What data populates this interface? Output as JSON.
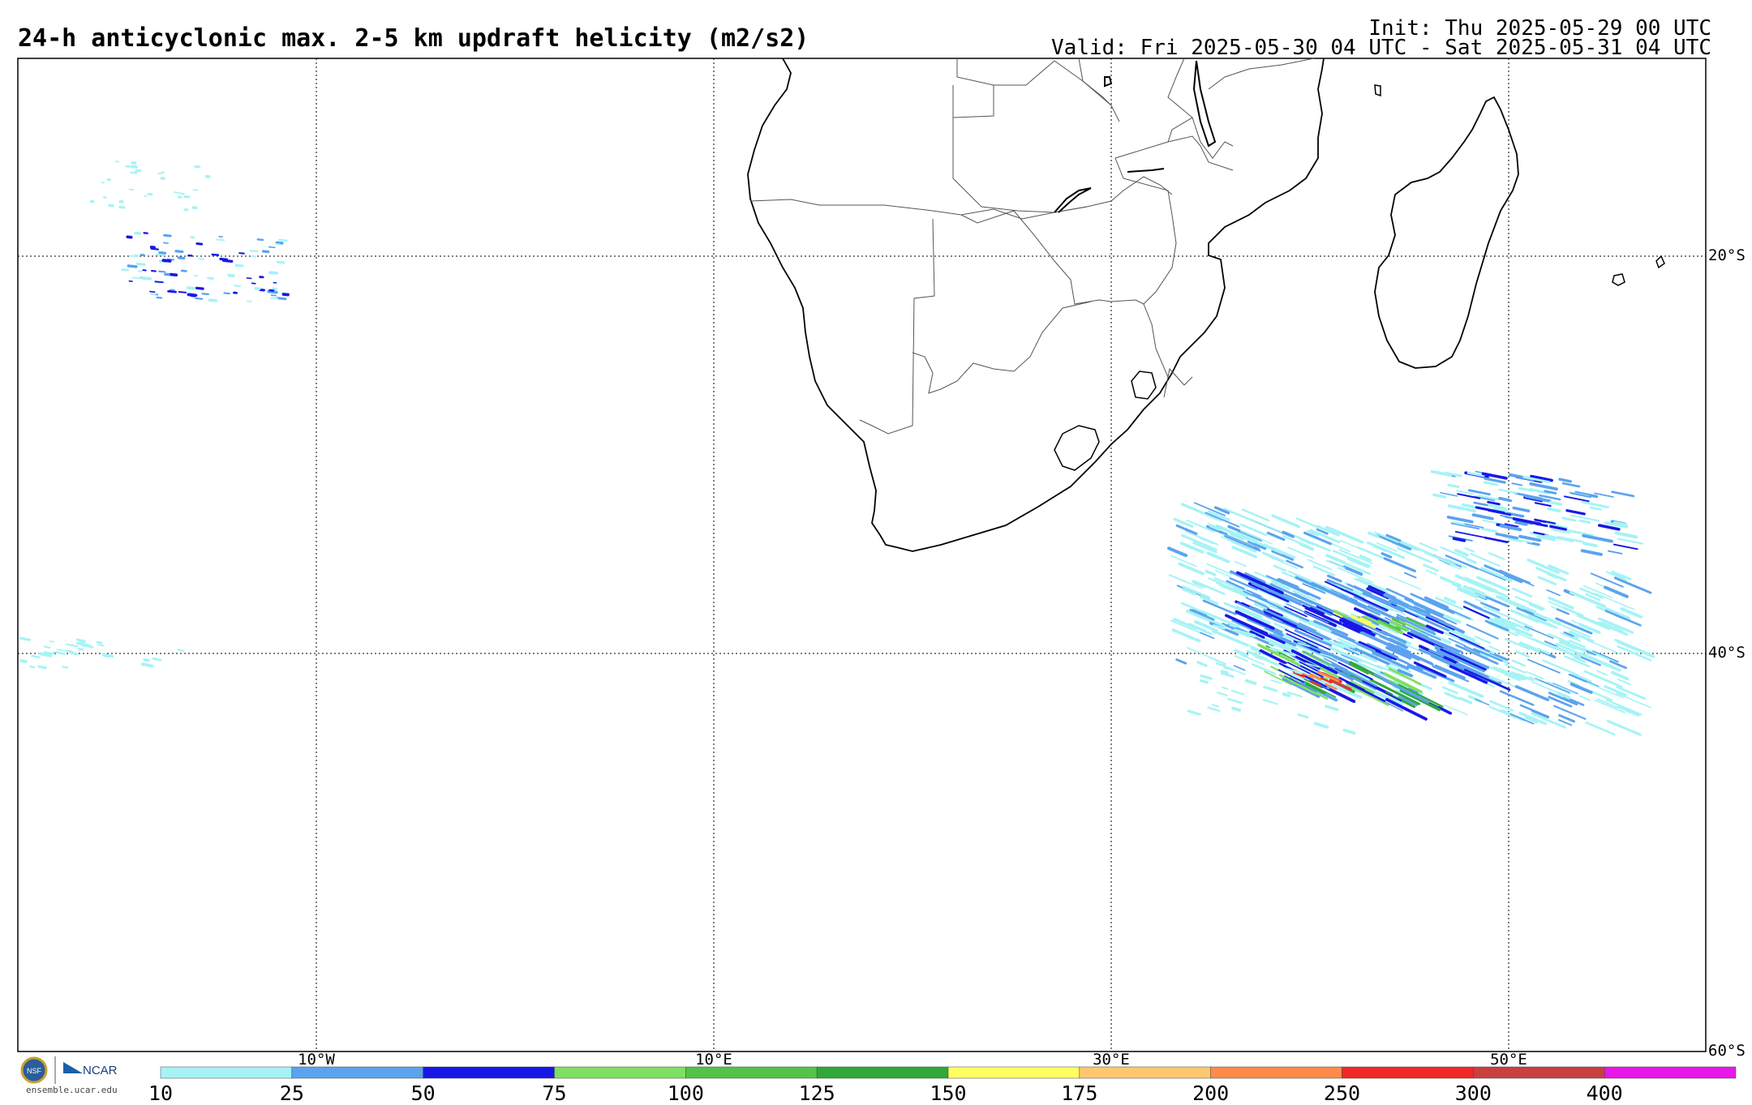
{
  "title": "24-h anticyclonic max. 2-5 km updraft helicity (m2/s2)",
  "init": "Init: Thu 2025-05-29 00 UTC",
  "valid": "Valid: Fri 2025-05-30 04 UTC - Sat 2025-05-31 04 UTC",
  "map": {
    "projection": "cylindrical equidistant",
    "lon_range": [
      -25,
      60
    ],
    "lat_range": [
      -60,
      -10
    ],
    "grid_lines": "dotted",
    "lat_labels": [
      "20°S",
      "40°S",
      "60°S"
    ],
    "lon_labels": [
      "10°W",
      "10°E",
      "30°E",
      "50°E"
    ]
  },
  "colorbar": {
    "ticks": [
      "10",
      "25",
      "50",
      "75",
      "100",
      "125",
      "150",
      "175",
      "200",
      "250",
      "300",
      "400"
    ],
    "colors": [
      "#a6f3f5",
      "#5ba3ee",
      "#1818e6",
      "#7ee060",
      "#52c44a",
      "#30a83a",
      "#ffff60",
      "#ffc870",
      "#ff8a4a",
      "#f02828",
      "#c84040",
      "#e818e8"
    ]
  },
  "logo": {
    "nsf_text": "NSF",
    "ncar_text": "NCAR",
    "url": "ensemble.ucar.edu"
  }
}
